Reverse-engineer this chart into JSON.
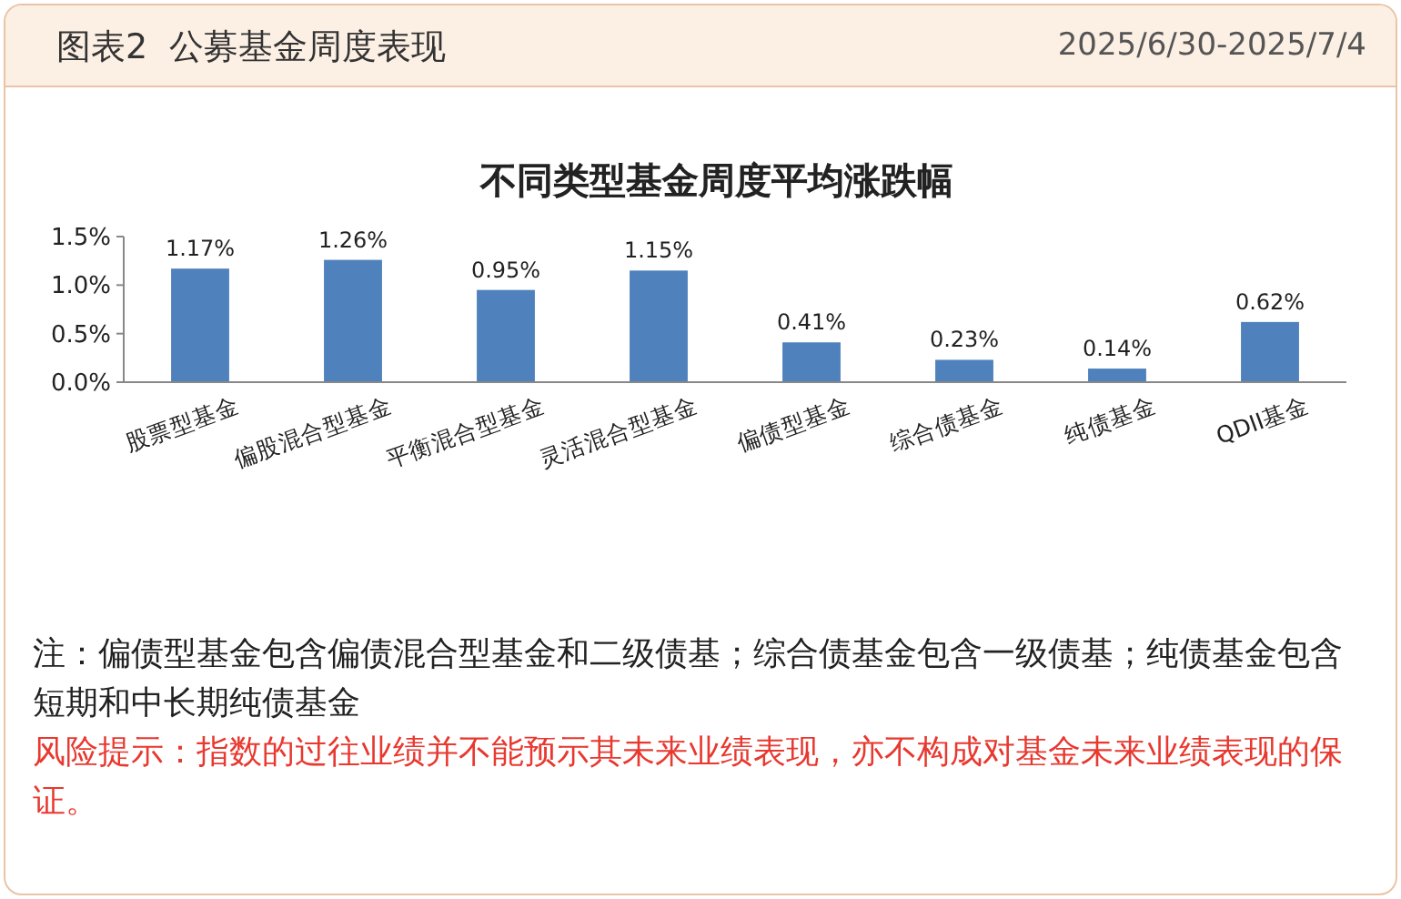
{
  "chart_data": {
    "type": "bar",
    "title": "不同类型基金周度平均涨跌幅",
    "categories": [
      "股票型基金",
      "偏股混合型基金",
      "平衡混合型基金",
      "灵活混合型基金",
      "偏债型基金",
      "综合债基金",
      "纯债基金",
      "QDII基金"
    ],
    "values": [
      1.17,
      1.26,
      0.95,
      1.15,
      0.41,
      0.23,
      0.14,
      0.62
    ],
    "value_labels": [
      "1.17%",
      "1.26%",
      "0.95%",
      "1.15%",
      "0.41%",
      "0.23%",
      "0.14%",
      "0.62%"
    ],
    "color": "#4f81bd",
    "ylim": [
      0,
      1.5
    ],
    "yticks": [
      {
        "value": 0,
        "label": "0.0%"
      },
      {
        "value": 0.5,
        "label": "0.5%"
      },
      {
        "value": 1,
        "label": "1.0%"
      },
      {
        "value": 1.5,
        "label": "1.5%"
      }
    ],
    "grid": false,
    "annotations": [
      "图表2  公募基金周度表现",
      "2025/6/30-2025/7/4",
      "注：偏债型基金包含偏债混合型基金和二级债基；综合债基金包含一级债基；纯债基金包含短期和中长期纯债基金",
      "风险提示：指数的过往业绩并不能预示其未来业绩表现，亦不构成对基金未来业绩表现的保证。"
    ]
  }
}
